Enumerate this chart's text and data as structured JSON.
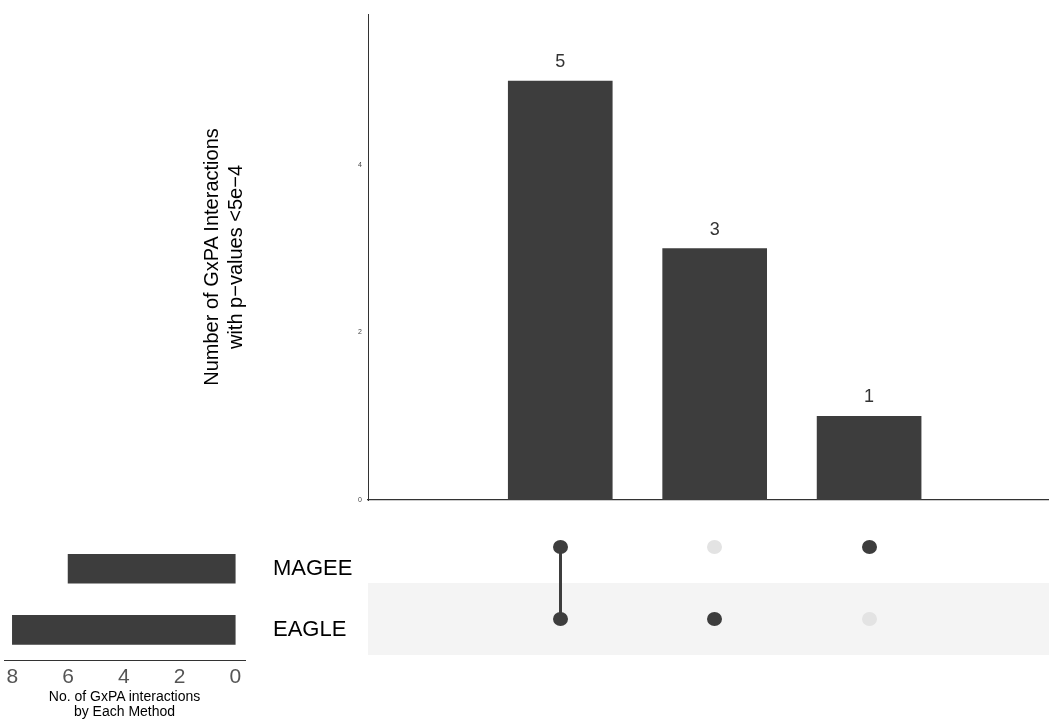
{
  "chart_data": [
    {
      "type": "bar",
      "categories": [
        null,
        null,
        null
      ],
      "values": [
        5,
        3,
        1
      ],
      "color": "#3d3d3d",
      "ylabel": "Number of GxPA Interactions\nwith p−values <5e−4",
      "ylim": [
        0,
        5.8
      ],
      "yticks": [
        0,
        2,
        4
      ],
      "data_labels": true,
      "grid": false,
      "tick_labels": "y"
    },
    {
      "type": "bar",
      "orientation": "horizontal",
      "categories": [
        "MAGEE",
        "EAGLE"
      ],
      "values": [
        6,
        8
      ],
      "color": "#3d3d3d",
      "xlabel": "No. of GxPA interactions\nby Each Method",
      "xlim": [
        8.3,
        -0.35
      ],
      "xticks": [
        8,
        6,
        4,
        2,
        0
      ],
      "grid": false
    }
  ]
}
